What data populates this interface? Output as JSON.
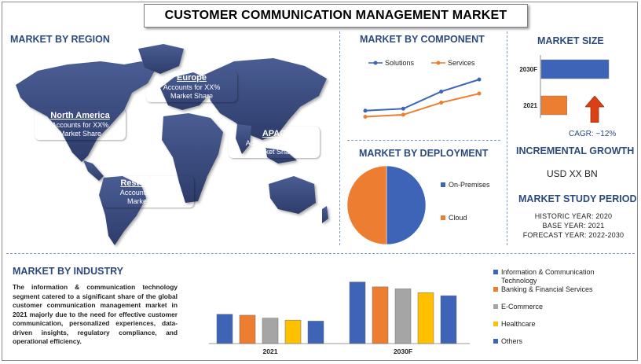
{
  "title": "CUSTOMER COMMUNICATION MANAGEMENT MARKET",
  "colors": {
    "blue": "#3e64b8",
    "orange": "#ed7d31",
    "gray": "#a5a5a5",
    "yellow": "#ffc000",
    "title_blue": "#2c4a7c",
    "map": "#3a4b7e",
    "red_arrow": "#d94015"
  },
  "region": {
    "heading": "MARKET BY REGION",
    "boxes": [
      {
        "name": "North America",
        "line1": "Accounts for XX%",
        "line2": "Market Share",
        "color": "#c0202e"
      },
      {
        "name": "Europe",
        "line1": "Accounts for XX%",
        "line2": "Market Share",
        "color": "#a0522d"
      },
      {
        "name": "APAC",
        "line1": "Accounts for XX%",
        "line2": "Market Share",
        "color": "#4f6228"
      },
      {
        "name": "Rest of World",
        "line1": "Accounts for XX%",
        "line2": "Market Share",
        "color": "#1f3a8a"
      }
    ]
  },
  "component": {
    "heading": "MARKET BY COMPONENT"
  },
  "deployment": {
    "heading": "MARKET BY DEPLOYMENT"
  },
  "size": {
    "heading": "MARKET SIZE",
    "cagr": "CAGR:  ~12%",
    "incremental_heading": "INCREMENTAL GROWTH",
    "incremental_value": "USD XX BN",
    "study_heading": "MARKET STUDY PERIOD",
    "historic": "HISTORIC YEAR: 2020",
    "base": "BASE YEAR: 2021",
    "forecast": "FORECAST YEAR: 2022-2030"
  },
  "industry": {
    "heading": "MARKET BY INDUSTRY",
    "description": "The information & communication technology segment catered to a significant share of the global customer communication management market in 2021 majorly due to the need for effective customer communication, personalized experiences, data-driven insights, regulatory compliance, and operational efficiency."
  },
  "chart_data": [
    {
      "type": "line",
      "name": "component",
      "x": [
        1,
        2,
        3,
        4
      ],
      "series": [
        {
          "name": "Solutions",
          "values": [
            1.5,
            1.7,
            3.4,
            4.6
          ],
          "color": "#3e64b8"
        },
        {
          "name": "Services",
          "values": [
            0.9,
            1.1,
            2.3,
            3.2
          ],
          "color": "#ed7d31"
        }
      ],
      "ylim": [
        0,
        5
      ],
      "legend": "top"
    },
    {
      "type": "pie",
      "name": "deployment",
      "categories": [
        "On-Premises",
        "Cloud"
      ],
      "values": [
        50,
        50
      ],
      "colors": [
        "#3e64b8",
        "#ed7d31"
      ],
      "legend": "right"
    },
    {
      "type": "bar",
      "name": "market_size",
      "orientation": "horizontal",
      "categories": [
        "2030F",
        "2021"
      ],
      "values": [
        100,
        38
      ],
      "colors": [
        "#3e64b8",
        "#ed7d31"
      ],
      "xlim": [
        0,
        100
      ]
    },
    {
      "type": "bar",
      "name": "industry",
      "categories": [
        "2021",
        "2030F"
      ],
      "series": [
        {
          "name": "Information & Communication Technology",
          "values": [
            3.0,
            6.3
          ],
          "color": "#3e64b8"
        },
        {
          "name": "Banking & Financial Services",
          "values": [
            2.9,
            5.8
          ],
          "color": "#ed7d31"
        },
        {
          "name": "E-Commerce",
          "values": [
            2.6,
            5.6
          ],
          "color": "#a5a5a5"
        },
        {
          "name": "Healthcare",
          "values": [
            2.4,
            5.2
          ],
          "color": "#ffc000"
        },
        {
          "name": "Others",
          "values": [
            2.3,
            4.9
          ],
          "color": "#3e64b8"
        }
      ],
      "ylim": [
        0,
        7
      ],
      "legend": "right"
    }
  ]
}
